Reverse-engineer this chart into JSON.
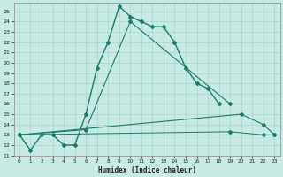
{
  "xlabel": "Humidex (Indice chaleur)",
  "background_color": "#c8eae4",
  "grid_color": "#a8d4cc",
  "line_color": "#1a7a6a",
  "xlim": [
    -0.5,
    23.5
  ],
  "ylim": [
    11,
    25.8
  ],
  "yticks": [
    11,
    12,
    13,
    14,
    15,
    16,
    17,
    18,
    19,
    20,
    21,
    22,
    23,
    24,
    25
  ],
  "xticks": [
    0,
    1,
    2,
    3,
    4,
    5,
    6,
    7,
    8,
    9,
    10,
    11,
    12,
    13,
    14,
    15,
    16,
    17,
    18,
    19,
    20,
    21,
    22,
    23
  ],
  "series1_x": [
    0,
    1,
    2,
    3,
    4,
    5,
    6,
    7,
    8,
    9,
    10,
    11,
    12,
    13,
    14,
    15,
    16,
    17,
    18
  ],
  "series1_y": [
    13,
    11.5,
    13,
    13,
    12,
    12,
    15,
    19.5,
    22,
    25.5,
    24.5,
    24,
    23.5,
    23.5,
    22,
    19.5,
    18,
    17.5,
    16
  ],
  "series2_x": [
    0,
    6,
    10,
    19
  ],
  "series2_y": [
    13,
    13.5,
    24,
    16
  ],
  "series3_x": [
    0,
    20,
    22,
    23
  ],
  "series3_y": [
    13,
    15,
    14,
    13
  ],
  "series4_x": [
    0,
    19,
    22,
    23
  ],
  "series4_y": [
    13,
    13.3,
    13,
    13
  ]
}
